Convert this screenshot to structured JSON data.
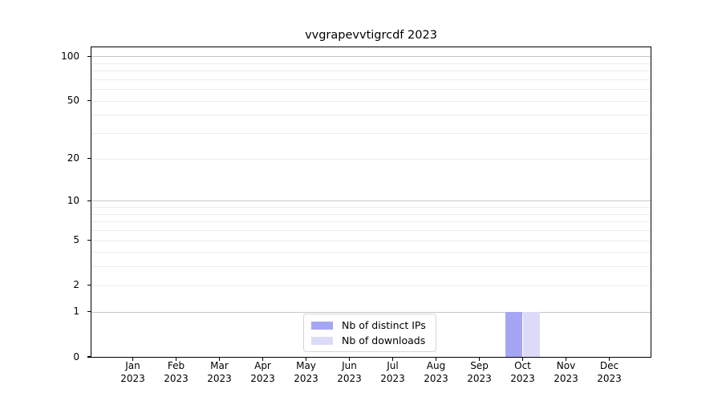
{
  "chart_data": {
    "type": "bar",
    "title": "vvgrapevvtigrcdf 2023",
    "categories": [
      "Jan 2023",
      "Feb 2023",
      "Mar 2023",
      "Apr 2023",
      "May 2023",
      "Jun 2023",
      "Jul 2023",
      "Aug 2023",
      "Sep 2023",
      "Oct 2023",
      "Nov 2023",
      "Dec 2023"
    ],
    "series": [
      {
        "name": "Nb of distinct IPs",
        "color": "#a5a5f5",
        "values": [
          0,
          0,
          0,
          0,
          0,
          0,
          0,
          0,
          0,
          1,
          0,
          0
        ]
      },
      {
        "name": "Nb of downloads",
        "color": "#dbdbf8",
        "values": [
          0,
          0,
          0,
          0,
          0,
          0,
          0,
          0,
          0,
          1,
          0,
          0
        ]
      }
    ],
    "xlabel": "",
    "ylabel": "",
    "y_scale": "log10(1+v)",
    "y_axis_ticks": [
      100,
      50,
      20,
      10,
      5,
      2,
      1,
      0
    ],
    "y_max": 115,
    "ylim": [
      0,
      115
    ],
    "gridlines_major": [
      1,
      10,
      100
    ],
    "gridlines_minor": [
      2,
      3,
      4,
      5,
      6,
      7,
      8,
      9,
      20,
      30,
      40,
      50,
      60,
      70,
      80,
      90
    ],
    "grid": "on",
    "legend_position": "inside-bottom-center"
  },
  "legend": {
    "items": [
      {
        "label": "Nb of distinct IPs",
        "color": "#a5a5f5"
      },
      {
        "label": "Nb of downloads",
        "color": "#dbdbf8"
      }
    ]
  },
  "colors": {
    "background": "#ffffff",
    "axis": "#000000",
    "grid_major": "#c6c6c6",
    "grid_minor": "#ececec",
    "bar_distinct_ips": "#a5a5f5",
    "bar_downloads": "#dbdbf8",
    "legend_border": "#d4d4d4"
  }
}
